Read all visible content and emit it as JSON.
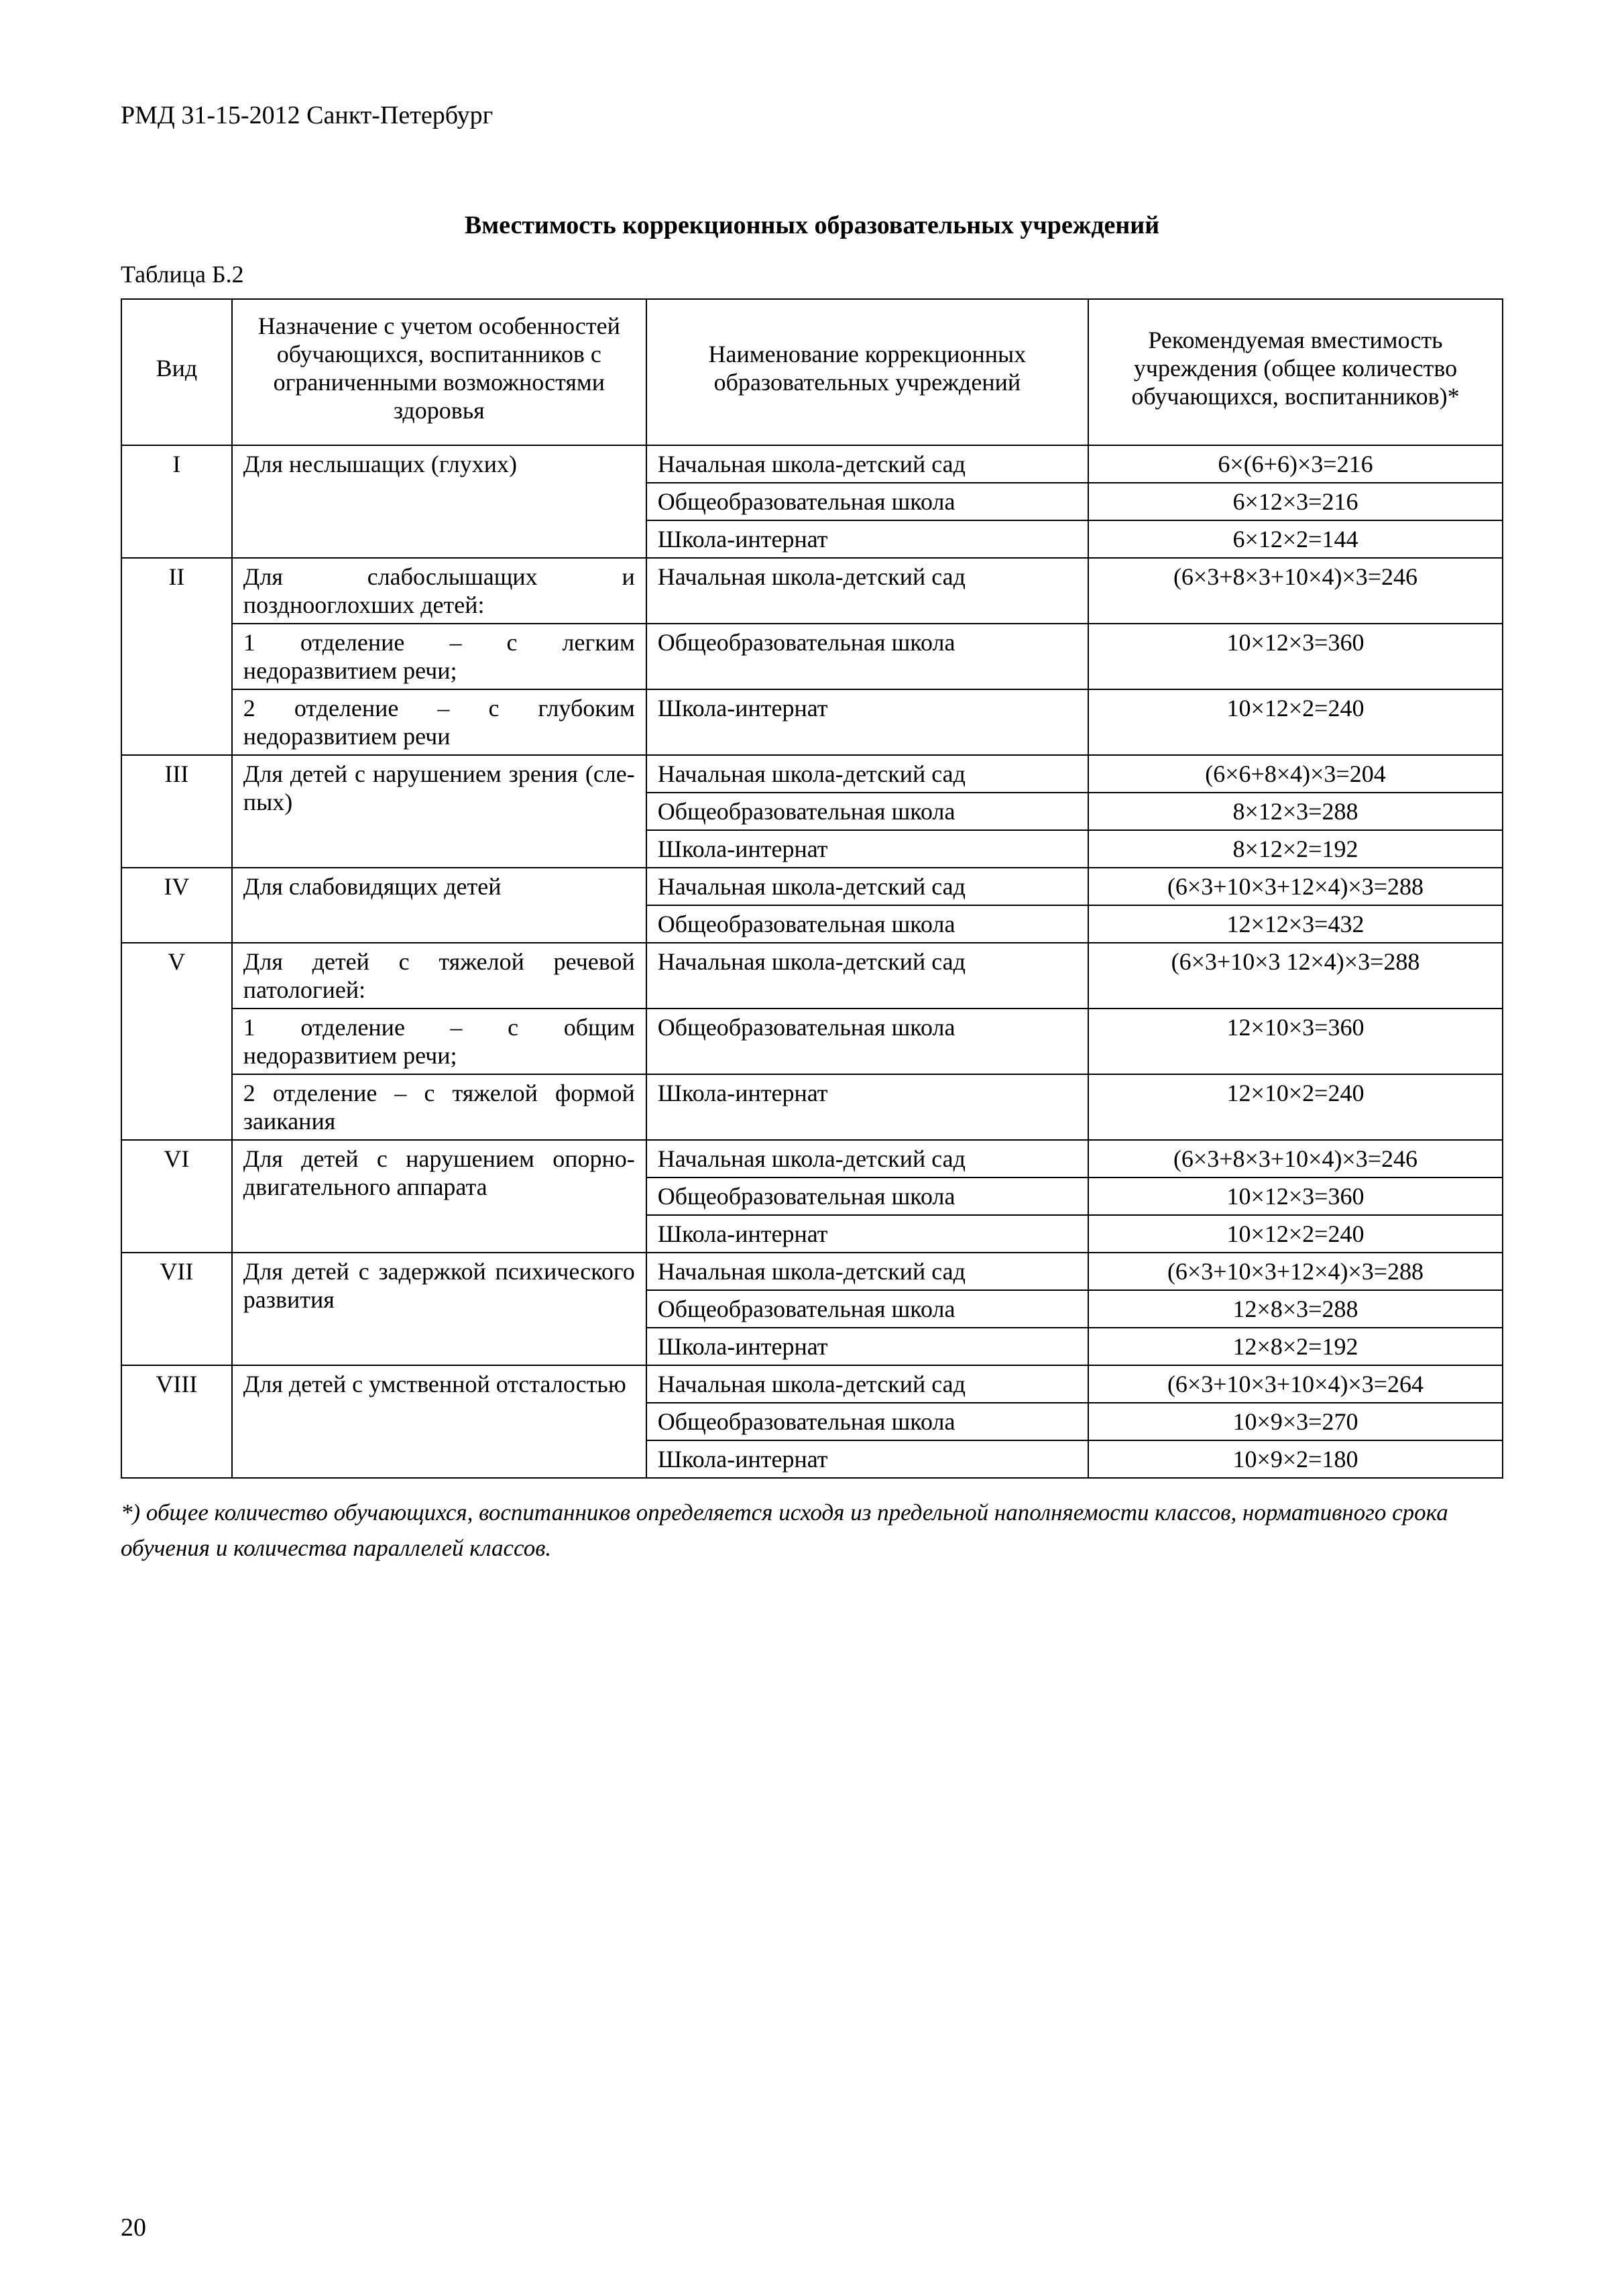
{
  "doc_header": "РМД 31-15-2012 Санкт-Петербург",
  "title": "Вместимость коррекционных образовательных учреждений",
  "table_label": "Таблица Б.2",
  "columns": {
    "c1": "Вид",
    "c2": "Назначение с учетом особенностей обучающихся, воспитанников с ограниченными возможностями здоровья",
    "c3": "Наименование коррекционных образовательных учреждений",
    "c4": "Рекомендуемая вместимость учреждения (общее количество обучающихся, воспитанников)*"
  },
  "rows": [
    {
      "vid": "I",
      "purpose": "Для неслышащих (глухих)",
      "items": [
        {
          "name": "Начальная школа-детский сад",
          "cap": "6×(6+6)×3=216"
        },
        {
          "name": "Общеобразовательная школа",
          "cap": "6×12×3=216"
        },
        {
          "name": "Школа-интернат",
          "cap": "6×12×2=144"
        }
      ]
    },
    {
      "vid": "II",
      "purpose": "Для слабослышащих и позднооглохших детей:",
      "purpose2": "1 отделение – с легким недоразвитием речи;",
      "purpose3": "2 отделение – с глубоким недоразвитием речи",
      "items": [
        {
          "name": "Начальная школа-детский сад",
          "cap": "(6×3+8×3+10×4)×3=246"
        },
        {
          "name": "Общеобразовательная школа",
          "cap": "10×12×3=360"
        },
        {
          "name": "Школа-интернат",
          "cap": "10×12×2=240"
        }
      ]
    },
    {
      "vid": "III",
      "purpose": "Для детей с нарушением зрения (сле­пых)",
      "items": [
        {
          "name": "Начальная школа-детский сад",
          "cap": "(6×6+8×4)×3=204"
        },
        {
          "name": "Общеобразовательная школа",
          "cap": "8×12×3=288"
        },
        {
          "name": "Школа-интернат",
          "cap": "8×12×2=192"
        }
      ]
    },
    {
      "vid": "IV",
      "purpose": "Для слабовидящих детей",
      "items": [
        {
          "name": "Начальная школа-детский сад",
          "cap": "(6×3+10×3+12×4)×3=288"
        },
        {
          "name": "Общеобразовательная школа",
          "cap": "12×12×3=432"
        }
      ]
    },
    {
      "vid": "V",
      "purpose": "Для детей с тяжелой ре­чевой патологией:",
      "purpose2": "1 отделение – с общим недоразвитием речи;",
      "purpose3": "2 отделение – с тяжелой формой заикания",
      "items": [
        {
          "name": "Начальная школа-детский сад",
          "cap": "(6×3+10×3 12×4)×3=288"
        },
        {
          "name": "Общеобразовательная школа",
          "cap": "12×10×3=360"
        },
        {
          "name": "Школа-интернат",
          "cap": "12×10×2=240"
        }
      ]
    },
    {
      "vid": "VI",
      "purpose": "Для детей с нарушением опорно-двигательного аппарата",
      "items": [
        {
          "name": "Начальная школа-детский сад",
          "cap": "(6×3+8×3+10×4)×3=246"
        },
        {
          "name": "Общеобразовательная школа",
          "cap": "10×12×3=360"
        },
        {
          "name": "Школа-интернат",
          "cap": "10×12×2=240"
        }
      ]
    },
    {
      "vid": "VII",
      "purpose": "Для детей с задержкой психического развития",
      "items": [
        {
          "name": "Начальная школа-детский сад",
          "cap": "(6×3+10×3+12×4)×3=288"
        },
        {
          "name": "Общеобразовательная школа",
          "cap": "12×8×3=288"
        },
        {
          "name": "Школа-интернат",
          "cap": "12×8×2=192"
        }
      ]
    },
    {
      "vid": "VIII",
      "purpose": "Для детей с умственной отсталостью",
      "items": [
        {
          "name": "Начальная школа-детский сад",
          "cap": "(6×3+10×3+10×4)×3=264"
        },
        {
          "name": "Общеобразовательная школа",
          "cap": "10×9×3=270"
        },
        {
          "name": "Школа-интернат",
          "cap": "10×9×2=180"
        }
      ]
    }
  ],
  "footnote": "*) общее количество обучающихся, воспитанников определяется исходя из предельной наполняемости классов,  нормативного срока обучения и количества параллелей классов.",
  "page_number": "20"
}
